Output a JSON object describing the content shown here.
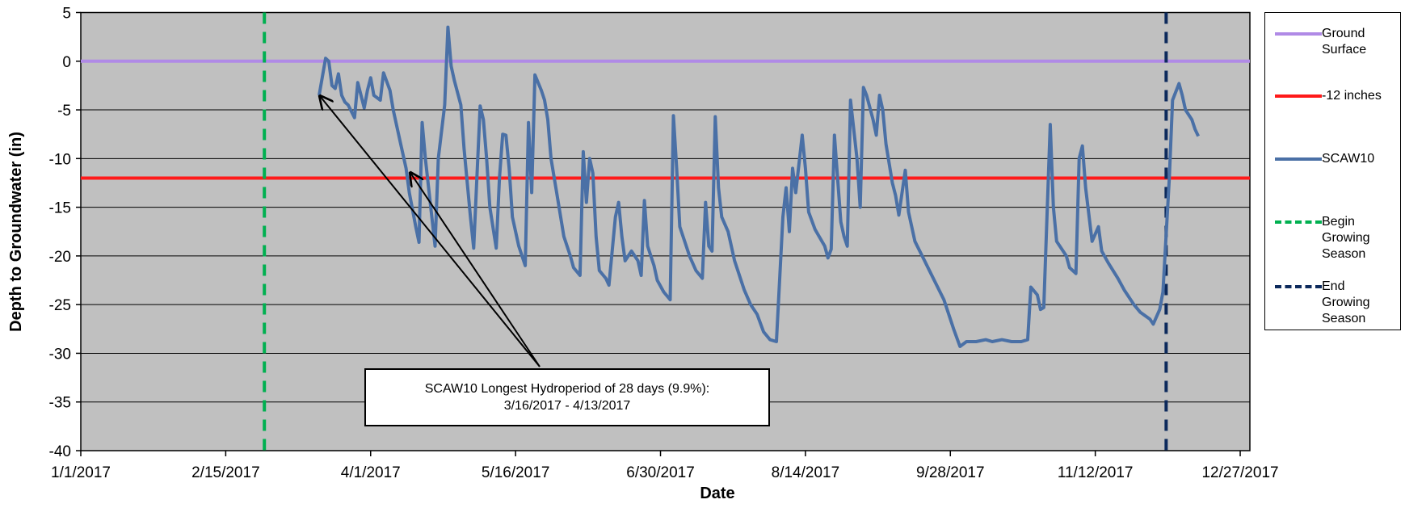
{
  "chart_data": {
    "type": "line",
    "xlabel": "Date",
    "ylabel": "Depth to Groundwater (in)",
    "xlim": [
      "2017-01-01",
      "2017-12-30"
    ],
    "xticks": [
      {
        "value": "2017-01-01",
        "label": "1/1/2017"
      },
      {
        "value": "2017-02-15",
        "label": "2/15/2017"
      },
      {
        "value": "2017-04-01",
        "label": "4/1/2017"
      },
      {
        "value": "2017-05-16",
        "label": "5/16/2017"
      },
      {
        "value": "2017-06-30",
        "label": "6/30/2017"
      },
      {
        "value": "2017-08-14",
        "label": "8/14/2017"
      },
      {
        "value": "2017-09-28",
        "label": "9/28/2017"
      },
      {
        "value": "2017-11-12",
        "label": "11/12/2017"
      },
      {
        "value": "2017-12-27",
        "label": "12/27/2017"
      }
    ],
    "ylim": [
      -40,
      5
    ],
    "yticks": [
      -40,
      -35,
      -30,
      -25,
      -20,
      -15,
      -10,
      -5,
      0,
      5
    ],
    "grid": true,
    "legend": "right",
    "reference_lines": [
      {
        "name": "Ground Surface",
        "color": "#b08ae6",
        "value": 0
      },
      {
        "name": "-12 inches",
        "color": "#ff1a1a",
        "value": -12
      }
    ],
    "series": [
      {
        "name": "SCAW10",
        "color": "#4a70a6",
        "x": [
          "2017-03-16",
          "2017-03-18",
          "2017-03-19",
          "2017-03-20",
          "2017-03-21",
          "2017-03-22",
          "2017-03-23",
          "2017-03-24",
          "2017-03-25",
          "2017-03-27",
          "2017-03-28",
          "2017-03-30",
          "2017-03-31",
          "2017-04-01",
          "2017-04-02",
          "2017-04-04",
          "2017-04-05",
          "2017-04-07",
          "2017-04-08",
          "2017-04-10",
          "2017-04-12",
          "2017-04-13",
          "2017-04-15",
          "2017-04-16",
          "2017-04-17",
          "2017-04-18",
          "2017-04-19",
          "2017-04-20",
          "2017-04-21",
          "2017-04-22",
          "2017-04-24",
          "2017-04-25",
          "2017-04-26",
          "2017-04-27",
          "2017-04-29",
          "2017-04-30",
          "2017-05-02",
          "2017-05-03",
          "2017-05-05",
          "2017-05-06",
          "2017-05-07",
          "2017-05-08",
          "2017-05-10",
          "2017-05-11",
          "2017-05-12",
          "2017-05-13",
          "2017-05-14",
          "2017-05-15",
          "2017-05-17",
          "2017-05-19",
          "2017-05-20",
          "2017-05-21",
          "2017-05-22",
          "2017-05-24",
          "2017-05-25",
          "2017-05-26",
          "2017-05-27",
          "2017-05-29",
          "2017-05-31",
          "2017-06-02",
          "2017-06-03",
          "2017-06-05",
          "2017-06-06",
          "2017-06-07",
          "2017-06-08",
          "2017-06-09",
          "2017-06-10",
          "2017-06-11",
          "2017-06-13",
          "2017-06-14",
          "2017-06-16",
          "2017-06-17",
          "2017-06-18",
          "2017-06-19",
          "2017-06-21",
          "2017-06-23",
          "2017-06-24",
          "2017-06-25",
          "2017-06-26",
          "2017-06-28",
          "2017-06-29",
          "2017-07-01",
          "2017-07-03",
          "2017-07-04",
          "2017-07-05",
          "2017-07-06",
          "2017-07-08",
          "2017-07-09",
          "2017-07-11",
          "2017-07-13",
          "2017-07-14",
          "2017-07-15",
          "2017-07-16",
          "2017-07-17",
          "2017-07-18",
          "2017-07-19",
          "2017-07-21",
          "2017-07-23",
          "2017-07-26",
          "2017-07-28",
          "2017-07-30",
          "2017-08-01",
          "2017-08-03",
          "2017-08-05",
          "2017-08-07",
          "2017-08-08",
          "2017-08-09",
          "2017-08-10",
          "2017-08-11",
          "2017-08-13",
          "2017-08-14",
          "2017-08-15",
          "2017-08-17",
          "2017-08-20",
          "2017-08-21",
          "2017-08-22",
          "2017-08-23",
          "2017-08-25",
          "2017-08-26",
          "2017-08-27",
          "2017-08-28",
          "2017-08-30",
          "2017-08-31",
          "2017-09-01",
          "2017-09-02",
          "2017-09-04",
          "2017-09-05",
          "2017-09-06",
          "2017-09-07",
          "2017-09-08",
          "2017-09-10",
          "2017-09-11",
          "2017-09-12",
          "2017-09-14",
          "2017-09-15",
          "2017-09-17",
          "2017-09-20",
          "2017-09-23",
          "2017-09-26",
          "2017-09-29",
          "2017-10-01",
          "2017-10-03",
          "2017-10-06",
          "2017-10-09",
          "2017-10-11",
          "2017-10-14",
          "2017-10-17",
          "2017-10-20",
          "2017-10-22",
          "2017-10-23",
          "2017-10-25",
          "2017-10-26",
          "2017-10-27",
          "2017-10-29",
          "2017-10-30",
          "2017-10-31",
          "2017-11-03",
          "2017-11-04",
          "2017-11-06",
          "2017-11-07",
          "2017-11-08",
          "2017-11-09",
          "2017-11-11",
          "2017-11-13",
          "2017-11-14",
          "2017-11-16",
          "2017-11-19",
          "2017-11-21",
          "2017-11-24",
          "2017-11-26",
          "2017-11-29",
          "2017-11-30",
          "2017-12-02",
          "2017-12-03",
          "2017-12-05",
          "2017-12-06",
          "2017-12-08",
          "2017-12-09",
          "2017-12-10",
          "2017-12-12",
          "2017-12-13",
          "2017-12-14"
        ],
        "values": [
          -3.5,
          0.3,
          0,
          -2.5,
          -2.8,
          -1.3,
          -3.5,
          -4.2,
          -4.5,
          -5.8,
          -2.2,
          -4.8,
          -3,
          -1.7,
          -3.5,
          -4,
          -1.2,
          -3,
          -5,
          -8,
          -11,
          -13.5,
          -17,
          -18.6,
          -6.3,
          -10,
          -13,
          -16,
          -19,
          -10,
          -4.5,
          3.5,
          -0.5,
          -2,
          -4.5,
          -9,
          -16,
          -19.2,
          -4.6,
          -6,
          -10,
          -15,
          -19.2,
          -12,
          -7.5,
          -7.6,
          -11,
          -16,
          -19,
          -21,
          -6.3,
          -13.5,
          -1.4,
          -3,
          -4,
          -6,
          -10,
          -14,
          -18,
          -20,
          -21.2,
          -22,
          -9.3,
          -14.5,
          -10,
          -11.5,
          -18,
          -21.5,
          -22.3,
          -23,
          -16,
          -14.5,
          -18,
          -20.5,
          -19.5,
          -20.5,
          -22,
          -14.3,
          -19,
          -21,
          -22.5,
          -23.7,
          -24.5,
          -5.6,
          -11,
          -17,
          -19,
          -20,
          -21.5,
          -22.3,
          -14.5,
          -19,
          -19.5,
          -5.7,
          -13,
          -16,
          -17.5,
          -20.5,
          -23.5,
          -25,
          -26,
          -27.8,
          -28.6,
          -28.8,
          -16,
          -13,
          -17.5,
          -11,
          -13.5,
          -7.6,
          -11,
          -15.5,
          -17.3,
          -19,
          -20.2,
          -19.3,
          -7.6,
          -16.5,
          -18,
          -19,
          -4,
          -10,
          -15,
          -2.7,
          -3.5,
          -6,
          -7.6,
          -3.5,
          -5,
          -8.5,
          -12.5,
          -13.8,
          -15.8,
          -11.2,
          -15.5,
          -18.5,
          -20.5,
          -22.5,
          -24.5,
          -27.5,
          -29.3,
          -28.8,
          -28.8,
          -28.6,
          -28.8,
          -28.6,
          -28.8,
          -28.8,
          -28.6,
          -23.2,
          -24,
          -25.5,
          -25.3,
          -6.5,
          -15,
          -18.5,
          -20,
          -21.2,
          -21.8,
          -10,
          -8.7,
          -13,
          -18.5,
          -17,
          -19.5,
          -20.7,
          -22.3,
          -23.5,
          -25,
          -25.8,
          -26.5,
          -27,
          -25.5,
          -23.7,
          -12,
          -4,
          -2.3,
          -3.5,
          -5,
          -6,
          -7,
          -7.7
        ]
      }
    ],
    "vertical_lines": [
      {
        "name": "Begin Growing Season",
        "color": "#00b050",
        "x": "2017-02-27"
      },
      {
        "name": "End Growing Season",
        "color": "#0d2a5c",
        "x": "2017-12-04"
      }
    ],
    "annotation": [
      "SCAW10 Longest Hydroperiod of 28 days (9.9%):",
      "3/16/2017 - 4/13/2017"
    ]
  }
}
